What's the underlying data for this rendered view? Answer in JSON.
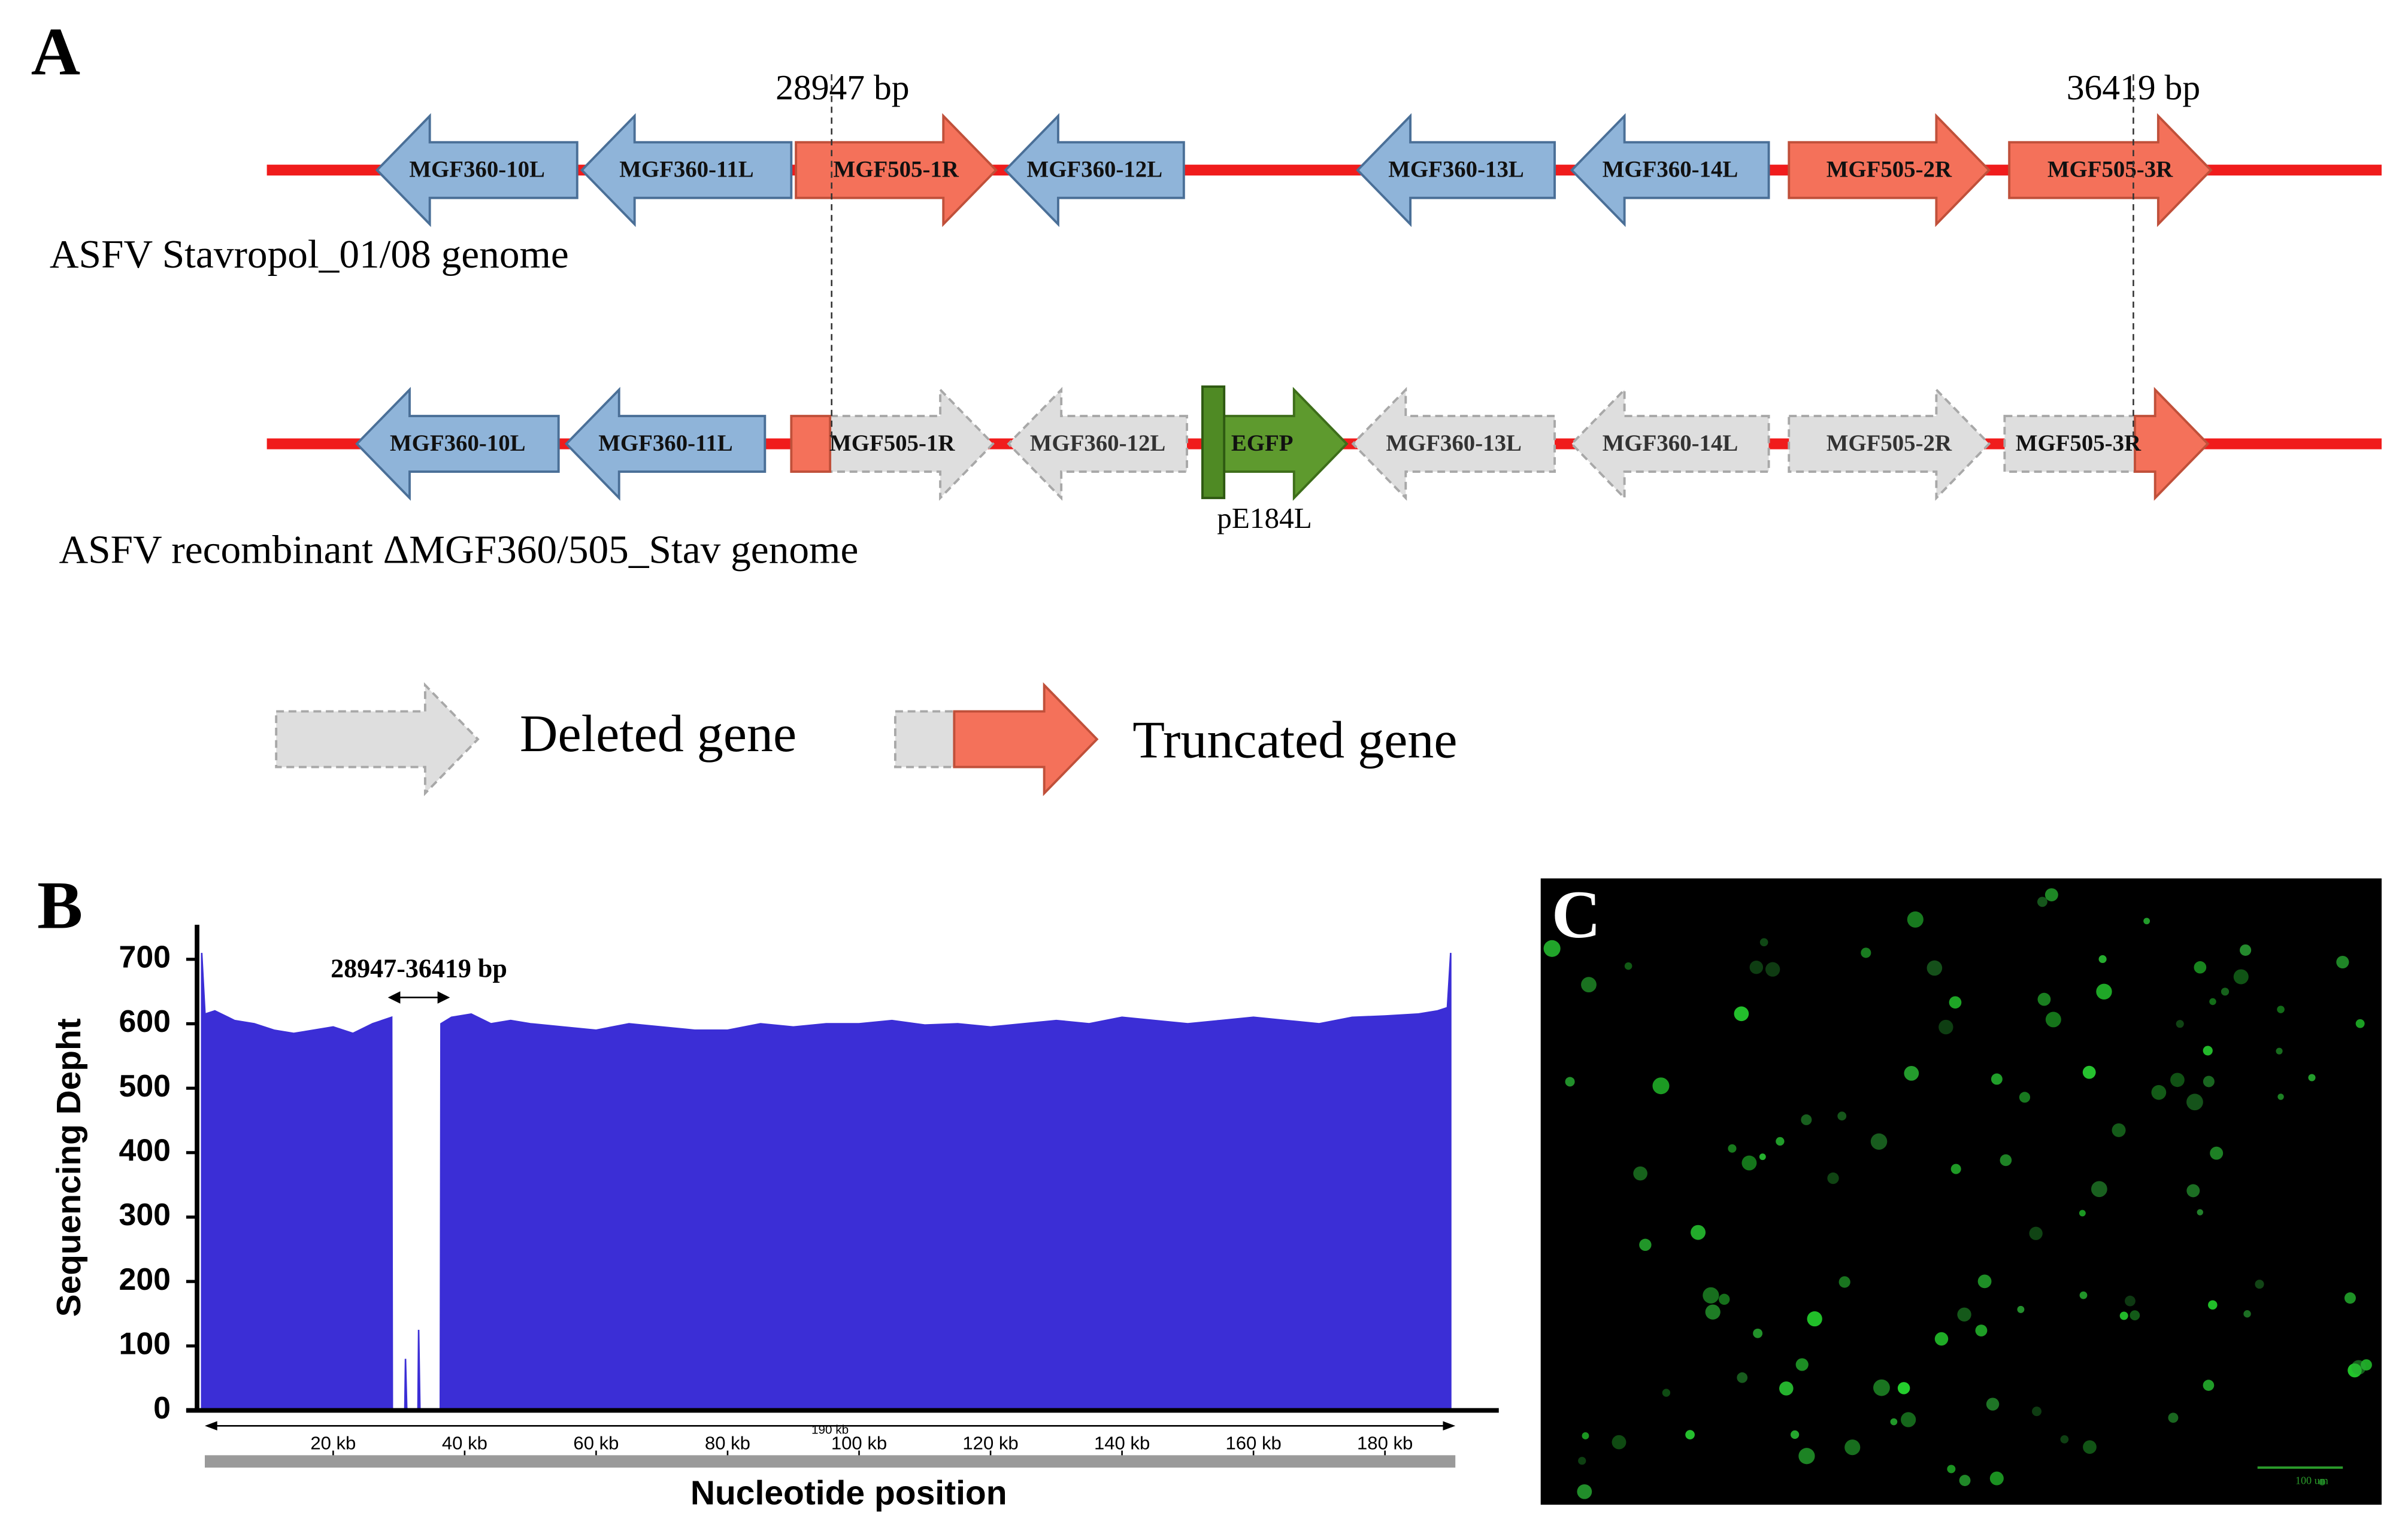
{
  "panel_a": {
    "label": "A",
    "genomes": [
      {
        "name": "ASFV Stavropol_01/08  genome",
        "genes": [
          "MGF360-10L",
          "MGF360-11L",
          "MGF505-1R",
          "MGF360-12L",
          "MGF360-13L",
          "MGF360-14L",
          "MGF505-2R",
          "MGF505-3R"
        ]
      },
      {
        "name": "ASFV recombinant  ΔMGF360/505_Stav genome",
        "genes": [
          "MGF360-10L",
          "MGF360-11L",
          "MGF505-1R",
          "MGF360-12L",
          "EGFP",
          "MGF360-13L",
          "MGF360-14L",
          "MGF505-2R",
          "MGF505-3R"
        ]
      }
    ],
    "markers": [
      "28947 bp",
      "36419 bp"
    ],
    "promoter": "pE184L",
    "legend": [
      "Deleted gene",
      "Truncated gene"
    ]
  },
  "chart_data": {
    "type": "area",
    "panel_label": "B",
    "ylabel": "Sequencing Depht",
    "xlabel": "Nucleotide position",
    "annotation": "28947-36419 bp",
    "axis_note": "190 kb",
    "color": "#3b2ed6",
    "x": [
      0,
      0.5,
      2,
      5,
      8,
      11,
      14,
      17,
      20,
      23,
      26,
      28.9,
      29,
      30.9,
      31,
      31.2,
      32.9,
      33,
      33.2,
      36.3,
      36.4,
      38,
      41,
      44,
      47,
      50,
      55,
      60,
      65,
      70,
      75,
      80,
      85,
      90,
      95,
      100,
      105,
      110,
      115,
      120,
      125,
      130,
      135,
      140,
      145,
      150,
      155,
      160,
      165,
      170,
      175,
      180,
      185,
      188,
      189.5,
      190
    ],
    "values": [
      710,
      615,
      620,
      605,
      600,
      590,
      585,
      590,
      595,
      585,
      600,
      610,
      0,
      0,
      80,
      0,
      0,
      125,
      0,
      0,
      600,
      610,
      615,
      600,
      605,
      600,
      595,
      590,
      600,
      595,
      590,
      590,
      600,
      595,
      600,
      600,
      605,
      598,
      600,
      595,
      600,
      605,
      600,
      610,
      605,
      600,
      605,
      610,
      605,
      600,
      610,
      612,
      615,
      620,
      625,
      710
    ],
    "xlim": [
      0,
      190
    ],
    "ylim": [
      0,
      720
    ],
    "xticks": [
      {
        "value": 20,
        "label": "20 kb"
      },
      {
        "value": 40,
        "label": "40 kb"
      },
      {
        "value": 60,
        "label": "60 kb"
      },
      {
        "value": 80,
        "label": "80 kb"
      },
      {
        "value": 100,
        "label": "100 kb"
      },
      {
        "value": 120,
        "label": "120 kb"
      },
      {
        "value": 140,
        "label": "140 kb"
      },
      {
        "value": 160,
        "label": "160 kb"
      },
      {
        "value": 180,
        "label": "180 kb"
      }
    ],
    "yticks": [
      0,
      100,
      200,
      300,
      400,
      500,
      600,
      700
    ]
  },
  "panel_c": {
    "label": "C",
    "scale_bar": "100 um"
  }
}
